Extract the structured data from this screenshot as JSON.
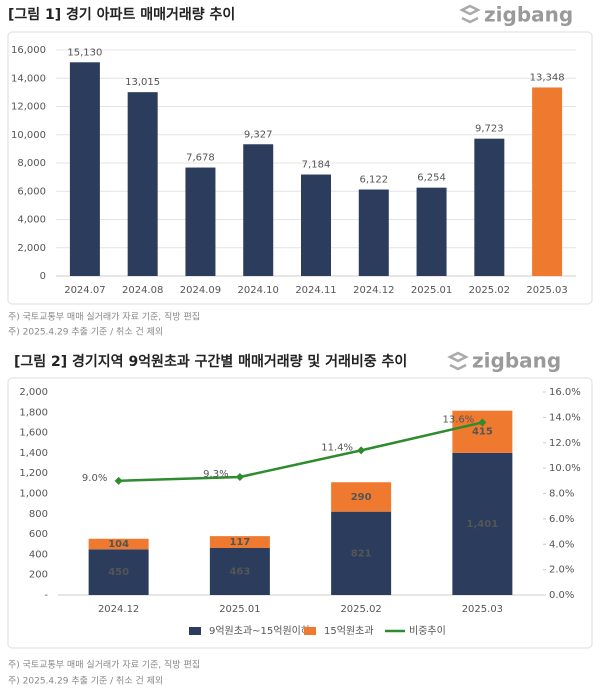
{
  "chart_data": [
    {
      "type": "bar",
      "title": "[그림 1] 경기 아파트 매매거래량 추이",
      "logo": "zigbang",
      "categories": [
        "2024.07",
        "2024.08",
        "2024.09",
        "2024.10",
        "2024.11",
        "2024.12",
        "2025.01",
        "2025.02",
        "2025.03"
      ],
      "values": [
        15130,
        13015,
        7678,
        9327,
        7184,
        6122,
        6254,
        9723,
        13348
      ],
      "value_labels": [
        "15,130",
        "13,015",
        "7,678",
        "9,327",
        "7,184",
        "6,122",
        "6,254",
        "9,723",
        "13,348"
      ],
      "colors": [
        "#2b3c5d",
        "#2b3c5d",
        "#2b3c5d",
        "#2b3c5d",
        "#2b3c5d",
        "#2b3c5d",
        "#2b3c5d",
        "#2b3c5d",
        "#ef7a2f"
      ],
      "ylim": [
        0,
        16000
      ],
      "yticks": [
        0,
        {
          "value": 2000,
          "label": "2,000"
        },
        {
          "value": 4000,
          "label": "4,000"
        },
        {
          "value": 6000,
          "label": "6,000"
        },
        {
          "value": 8000,
          "label": "8,000"
        },
        {
          "value": 10000,
          "label": "10,000"
        },
        {
          "value": 12000,
          "label": "12,000"
        },
        {
          "value": 14000,
          "label": "14,000"
        },
        {
          "value": 16000,
          "label": "16,000"
        }
      ],
      "grid": true,
      "notes": [
        "주) 국토교통부 매매 실거래가 자료 기준, 직방 편집",
        "주) 2025.4.29 추출 기준 / 취소 건 제외"
      ]
    },
    {
      "type": "combo",
      "title": "[그림 2] 경기지역 9억원초과 구간별 매매거래량 및 거래비중 추이",
      "logo": "zigbang",
      "categories": [
        "2024.12",
        "2025.01",
        "2025.02",
        "2025.03"
      ],
      "series": [
        {
          "name": "9억원초과~15억원이하",
          "color": "#2b3c5d",
          "values": [
            450,
            463,
            821,
            1401
          ],
          "value_labels": [
            "450",
            "463",
            "821",
            "1,401"
          ]
        },
        {
          "name": "15억원초과",
          "color": "#ef7a2f",
          "values": [
            104,
            117,
            290,
            415
          ]
        },
        {
          "name": "비중추이",
          "color": "#2e8b2e",
          "axis": "y2",
          "values": [
            9.0,
            9.3,
            11.4,
            13.6
          ],
          "value_labels": [
            "9.0%",
            "9.3%",
            "11.4%",
            "13.6%"
          ]
        }
      ],
      "ylim": [
        0,
        2000
      ],
      "yticks": [
        {
          "value": 0,
          "label": "-"
        },
        200,
        400,
        600,
        800,
        {
          "value": 1000,
          "label": "1,000"
        },
        {
          "value": 1200,
          "label": "1,200"
        },
        {
          "value": 1400,
          "label": "1,400"
        },
        {
          "value": 1600,
          "label": "1,600"
        },
        {
          "value": 1800,
          "label": "1,800"
        },
        {
          "value": 2000,
          "label": "2,000"
        }
      ],
      "y2lim": [
        0,
        16
      ],
      "y2ticks": [
        {
          "value": 0,
          "label": "0.0%"
        },
        {
          "value": 2,
          "label": "2.0%"
        },
        {
          "value": 4,
          "label": "4.0%"
        },
        {
          "value": 6,
          "label": "6.0%"
        },
        {
          "value": 8,
          "label": "8.0%"
        },
        {
          "value": 10,
          "label": "10.0%"
        },
        {
          "value": 12,
          "label": "12.0%"
        },
        {
          "value": 14,
          "label": "14.0%"
        },
        {
          "value": 16,
          "label": "16.0%"
        }
      ],
      "grid": false,
      "legend": "bottom",
      "notes": [
        "주) 국토교통부 매매 실거래가 자료 기준, 직방 편집",
        "주) 2025.4.29 추출 기준 / 취소 건 제외"
      ]
    }
  ]
}
